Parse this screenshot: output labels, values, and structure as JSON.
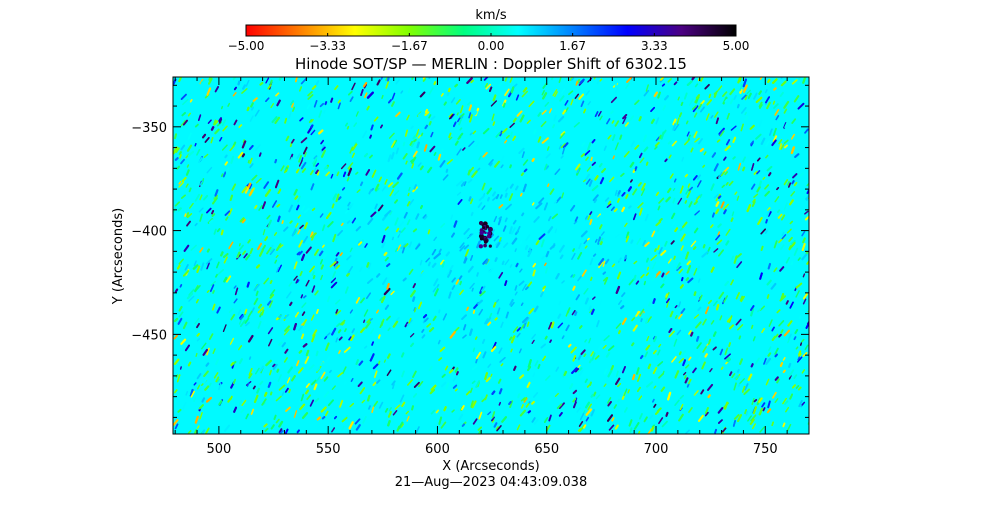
{
  "chart_data": {
    "type": "heatmap",
    "title": "Hinode SOT/SP — MERLIN : Doppler Shift of 6302.15",
    "xlabel": "X (Arcseconds)",
    "ylabel": "Y (Arcseconds)",
    "timestamp": "21—Aug—2023 04:43:09.038",
    "x_ticks": [
      "500",
      "550",
      "600",
      "650",
      "700",
      "750"
    ],
    "x_tick_values": [
      500,
      550,
      600,
      650,
      700,
      750
    ],
    "y_ticks": [
      "−350",
      "−400",
      "−450"
    ],
    "y_tick_values": [
      -350,
      -400,
      -450
    ],
    "xlim": [
      479,
      770
    ],
    "ylim": [
      -498,
      -326
    ],
    "colorbar": {
      "label": "km/s",
      "min": -5.0,
      "max": 5.0,
      "ticks": [
        "−5.00",
        "−3.33",
        "−1.67",
        "0.00",
        "1.67",
        "3.33",
        "5.00"
      ],
      "colors": [
        "#ff0000",
        "#ff8000",
        "#ffff00",
        "#80ff00",
        "#00ff80",
        "#00ffff",
        "#0080ff",
        "#0000ff",
        "#4b0082",
        "#000000"
      ]
    },
    "field": {
      "background_value": 0.6,
      "quiet_center_x": 622,
      "quiet_center_y": -410,
      "blue_patch_value": 3.6
    }
  }
}
